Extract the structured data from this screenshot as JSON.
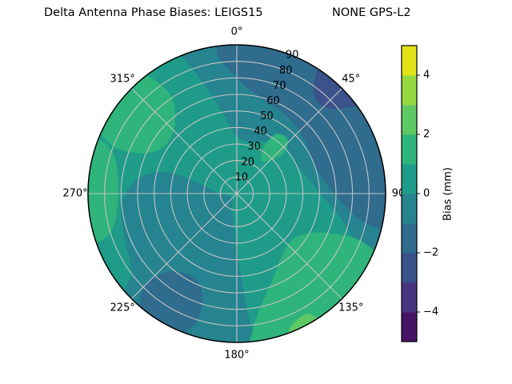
{
  "title": {
    "left": "Delta Antenna Phase Biases: LEIGS15",
    "right": "NONE GPS-L2"
  },
  "chart_data": {
    "type": "heatmap",
    "projection": "polar-contourf",
    "title": "Delta Antenna Phase Biases: LEIGS15        NONE GPS-L2",
    "angular_ticks": [
      {
        "deg": 0,
        "label": "0°"
      },
      {
        "deg": 45,
        "label": "45°"
      },
      {
        "deg": 90,
        "label": "90"
      },
      {
        "deg": 135,
        "label": "135°"
      },
      {
        "deg": 180,
        "label": "180°"
      },
      {
        "deg": 225,
        "label": "225°"
      },
      {
        "deg": 270,
        "label": "270°"
      },
      {
        "deg": 315,
        "label": "315°"
      }
    ],
    "radial_ticks": [
      {
        "value": 10,
        "label": "10"
      },
      {
        "value": 20,
        "label": "20"
      },
      {
        "value": 30,
        "label": "30"
      },
      {
        "value": 40,
        "label": "40"
      },
      {
        "value": 50,
        "label": "50"
      },
      {
        "value": 60,
        "label": "60"
      },
      {
        "value": 70,
        "label": "70"
      },
      {
        "value": 80,
        "label": "80"
      },
      {
        "value": 90,
        "label": "90"
      }
    ],
    "r_max": 90,
    "rlabel_angle_deg": 22.5,
    "grid": true,
    "grid_color": "#c4c4c4",
    "colorbar": {
      "label": "Bias (mm)",
      "value_range": [
        -5,
        5
      ],
      "n_bands": 10,
      "band_colors": [
        "#471365",
        "#463480",
        "#3b528b",
        "#2f6c8e",
        "#258490",
        "#1e9c89",
        "#2fb47c",
        "#5ec962",
        "#95d840",
        "#dfe318"
      ],
      "ticks": [
        {
          "value": 4,
          "label": "4"
        },
        {
          "value": 2,
          "label": "2"
        },
        {
          "value": 0,
          "label": "0"
        },
        {
          "value": -2,
          "label": "−2"
        },
        {
          "value": -4,
          "label": "−4"
        }
      ]
    },
    "background_value": 0.5,
    "regions": [
      {
        "name": "north-east-negative-band",
        "value": -0.5,
        "points": [
          [
            338,
            97
          ],
          [
            352,
            97
          ],
          [
            10,
            97
          ],
          [
            30,
            97
          ],
          [
            52,
            97
          ],
          [
            75,
            97
          ],
          [
            95,
            97
          ],
          [
            110,
            97
          ],
          [
            117,
            97
          ],
          [
            113,
            80
          ],
          [
            103,
            64
          ],
          [
            92,
            52
          ],
          [
            78,
            44
          ],
          [
            62,
            40
          ],
          [
            45,
            40
          ],
          [
            28,
            36
          ],
          [
            12,
            32
          ],
          [
            358,
            36
          ],
          [
            350,
            50
          ],
          [
            344,
            66
          ],
          [
            340,
            82
          ]
        ]
      },
      {
        "name": "north-east-blue-lobe",
        "value": -1.5,
        "points": [
          [
            356,
            97
          ],
          [
            15,
            97
          ],
          [
            35,
            97
          ],
          [
            60,
            97
          ],
          [
            82,
            97
          ],
          [
            97,
            97
          ],
          [
            103,
            97
          ],
          [
            103,
            80
          ],
          [
            95,
            64
          ],
          [
            83,
            54
          ],
          [
            68,
            50
          ],
          [
            52,
            52
          ],
          [
            36,
            55
          ],
          [
            20,
            58
          ],
          [
            6,
            64
          ],
          [
            357,
            74
          ],
          [
            352,
            86
          ]
        ]
      },
      {
        "name": "north-east-rim-dark-patch",
        "value": -2.5,
        "points": [
          [
            33,
            97
          ],
          [
            44,
            97
          ],
          [
            54,
            97
          ],
          [
            51,
            82
          ],
          [
            44,
            74
          ],
          [
            36,
            79
          ]
        ]
      },
      {
        "name": "west-south-negative-blob",
        "value": -0.5,
        "points": [
          [
            174,
            97
          ],
          [
            190,
            97
          ],
          [
            208,
            97
          ],
          [
            226,
            97
          ],
          [
            233,
            80
          ],
          [
            249,
            73
          ],
          [
            265,
            70
          ],
          [
            279,
            60
          ],
          [
            287,
            44
          ],
          [
            286,
            26
          ],
          [
            271,
            10
          ],
          [
            248,
            4
          ],
          [
            219,
            4
          ],
          [
            196,
            10
          ],
          [
            183,
            22
          ],
          [
            178,
            44
          ],
          [
            175,
            70
          ]
        ]
      },
      {
        "name": "south-west-blue-blob",
        "value": -1.5,
        "points": [
          [
            205,
            93
          ],
          [
            218,
            92
          ],
          [
            225,
            80
          ],
          [
            222,
            64
          ],
          [
            210,
            57
          ],
          [
            200,
            62
          ],
          [
            197,
            75
          ],
          [
            199,
            86
          ]
        ]
      },
      {
        "name": "north-west-green-blob",
        "value": 1.5,
        "points": [
          [
            298,
            97
          ],
          [
            309,
            97
          ],
          [
            320,
            97
          ],
          [
            326,
            74
          ],
          [
            320,
            58
          ],
          [
            307,
            52
          ],
          [
            296,
            57
          ],
          [
            291,
            71
          ],
          [
            292,
            85
          ]
        ]
      },
      {
        "name": "west-rim-green-band",
        "value": 1.5,
        "points": [
          [
            252,
            97
          ],
          [
            266,
            97
          ],
          [
            280,
            97
          ],
          [
            291,
            97
          ],
          [
            289,
            80
          ],
          [
            275,
            72
          ],
          [
            260,
            74
          ],
          [
            252,
            82
          ]
        ]
      },
      {
        "name": "south-east-green-blob",
        "value": 1.5,
        "points": [
          [
            116,
            97
          ],
          [
            131,
            97
          ],
          [
            146,
            97
          ],
          [
            161,
            97
          ],
          [
            175,
            97
          ],
          [
            173,
            82
          ],
          [
            167,
            68
          ],
          [
            157,
            56
          ],
          [
            143,
            46
          ],
          [
            128,
            44
          ],
          [
            117,
            52
          ],
          [
            112,
            66
          ],
          [
            111,
            82
          ]
        ]
      },
      {
        "name": "south-east-rim-bright-sliver",
        "value": 2.5,
        "points": [
          [
            147,
            97
          ],
          [
            156,
            97
          ],
          [
            163,
            97
          ],
          [
            157,
            86
          ],
          [
            149,
            85
          ]
        ]
      },
      {
        "name": "north-east-inner-green-spot",
        "value": 1.5,
        "points": [
          [
            30,
            31
          ],
          [
            38,
            25
          ],
          [
            46,
            29
          ],
          [
            49,
            38
          ],
          [
            43,
            45
          ],
          [
            33,
            43
          ]
        ]
      }
    ]
  }
}
